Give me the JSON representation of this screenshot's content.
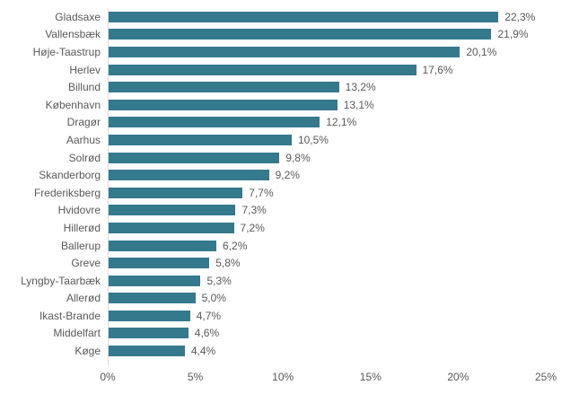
{
  "colors": {
    "bar": "#34798C",
    "axis_line": "#D9D9D9",
    "text": "#595959",
    "background": "#FFFFFF"
  },
  "chart_data": {
    "type": "bar",
    "orientation": "horizontal",
    "title": "",
    "categories": [
      "Gladsaxe",
      "Vallensbæk",
      "Høje-Taastrup",
      "Herlev",
      "Billund",
      "København",
      "Dragør",
      "Aarhus",
      "Solrød",
      "Skanderborg",
      "Frederiksberg",
      "Hvidovre",
      "Hillerød",
      "Ballerup",
      "Greve",
      "Lyngby-Taarbæk",
      "Allerød",
      "Ikast-Brande",
      "Middelfart",
      "Køge"
    ],
    "values": [
      22.3,
      21.9,
      20.1,
      17.6,
      13.2,
      13.1,
      12.1,
      10.5,
      9.8,
      9.2,
      7.7,
      7.3,
      7.2,
      6.2,
      5.8,
      5.3,
      5.0,
      4.7,
      4.6,
      4.4
    ],
    "value_labels": [
      "22,3%",
      "21,9%",
      "20,1%",
      "17,6%",
      "13,2%",
      "13,1%",
      "12,1%",
      "10,5%",
      "9,8%",
      "9,2%",
      "7,7%",
      "7,3%",
      "7,2%",
      "6,2%",
      "5,8%",
      "5,3%",
      "5,0%",
      "4,7%",
      "4,6%",
      "4,4%"
    ],
    "x_tick_labels": [
      "0%",
      "5%",
      "10%",
      "15%",
      "20%",
      "25%"
    ],
    "xlim": [
      0,
      25
    ],
    "xlabel": "",
    "ylabel": "",
    "grid": false,
    "legend": false
  }
}
